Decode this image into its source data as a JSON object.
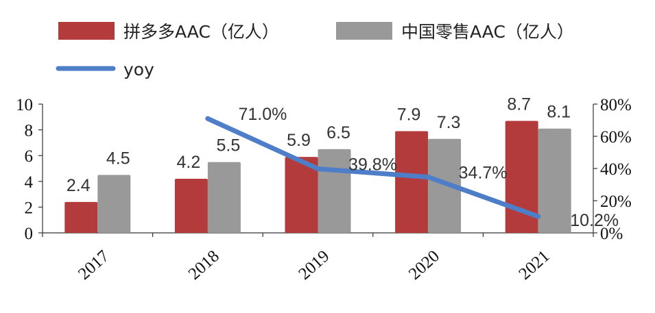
{
  "chart_data": {
    "type": "bar",
    "categories": [
      "2017",
      "2018",
      "2019",
      "2020",
      "2021"
    ],
    "series": [
      {
        "name": "拼多多AAC（亿人）",
        "kind": "bar",
        "axis": "left",
        "color": "#b43b3c",
        "values": [
          2.4,
          4.2,
          5.9,
          7.9,
          8.7
        ],
        "labels": [
          "2.4",
          "4.2",
          "5.9",
          "7.9",
          "8.7"
        ]
      },
      {
        "name": "中国零售AAC（亿人）",
        "kind": "bar",
        "axis": "left",
        "color": "#999999",
        "values": [
          4.5,
          5.5,
          6.5,
          7.3,
          8.1
        ],
        "labels": [
          "4.5",
          "5.5",
          "6.5",
          "7.3",
          "8.1"
        ]
      },
      {
        "name": "yoy",
        "kind": "line",
        "axis": "right",
        "color": "#4f7ec9",
        "values": [
          null,
          0.71,
          0.398,
          0.347,
          0.102
        ],
        "labels": [
          null,
          "71.0%",
          "39.8%",
          "34.7%",
          "10.2%"
        ]
      }
    ],
    "y_left": {
      "range": [
        0,
        10
      ],
      "ticks": [
        "0",
        "2",
        "4",
        "6",
        "8",
        "10"
      ]
    },
    "y_right": {
      "range": [
        0,
        0.8
      ],
      "ticks": [
        "0%",
        "20%",
        "40%",
        "60%",
        "80%"
      ]
    },
    "legend_position": "top-left",
    "grid": false
  }
}
